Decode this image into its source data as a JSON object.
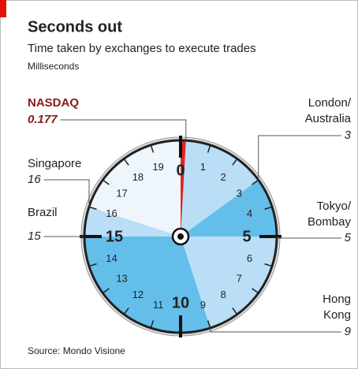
{
  "chart_data": {
    "type": "dial",
    "title": "Seconds out",
    "subtitle": "Time taken by exchanges to execute trades",
    "unit_note": "Milliseconds",
    "source": "Source: Mondo Visione",
    "lim": [
      0,
      20
    ],
    "ticks": [
      0,
      1,
      2,
      3,
      4,
      5,
      6,
      7,
      8,
      9,
      10,
      11,
      12,
      13,
      14,
      15,
      16,
      17,
      18,
      19
    ],
    "major_ticks": [
      0,
      5,
      10,
      15
    ],
    "face_color": "#eef6fc",
    "series": [
      {
        "name": [
          "NASDAQ"
        ],
        "value": 0.177,
        "color": "#e0261f",
        "label_color": "#8b1a1a"
      },
      {
        "name": [
          "London/",
          "Australia"
        ],
        "value": 3,
        "color": "#b9def5",
        "label_color": "#222222"
      },
      {
        "name": [
          "Tokyo/",
          "Bombay"
        ],
        "value": 5,
        "color": "#63bfea",
        "label_color": "#222222"
      },
      {
        "name": [
          "Hong",
          "Kong"
        ],
        "value": 9,
        "color": "#b9def5",
        "label_color": "#222222"
      },
      {
        "name": [
          "Brazil"
        ],
        "value": 15,
        "color": "#63bfea",
        "label_color": "#222222"
      },
      {
        "name": [
          "Singapore"
        ],
        "value": 16,
        "color": "#b9def5",
        "label_color": "#222222"
      }
    ]
  }
}
